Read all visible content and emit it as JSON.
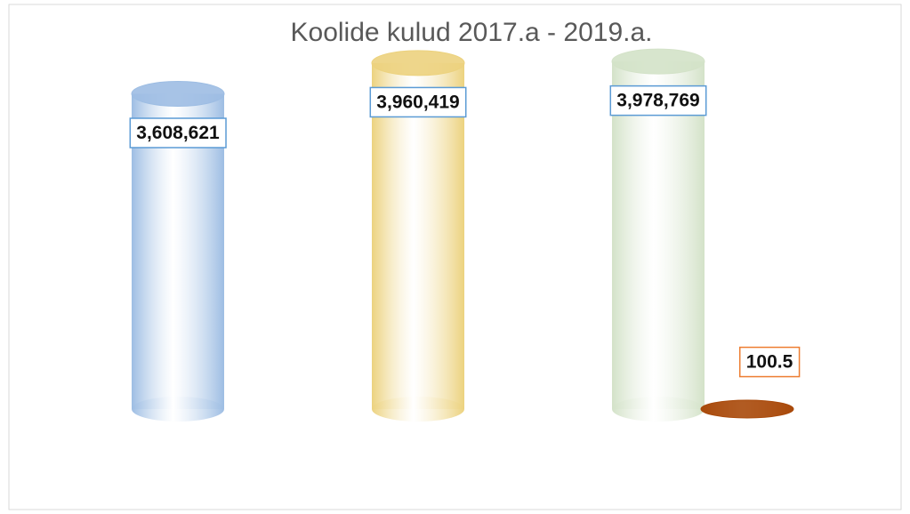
{
  "chart_data": {
    "type": "bar3d",
    "title": "Koolide kulud 2017.a - 2019.a.",
    "categories": [
      null,
      null,
      null
    ],
    "series": [
      {
        "values": [
          3608621,
          3960419,
          3978769
        ],
        "value_labels": [
          "3,608,621",
          "3,960,419",
          "3,978,769"
        ],
        "colors": [
          "#9dbde3",
          "#ecd27e",
          "#d3e2c8"
        ],
        "label_border": "#5b9bd5"
      },
      {
        "values": [
          null,
          null,
          100.5
        ],
        "colors": [
          null,
          null,
          "#a9490a"
        ],
        "label_border": "#ed7d31"
      }
    ],
    "ylim": [
      0,
      4000000
    ]
  }
}
